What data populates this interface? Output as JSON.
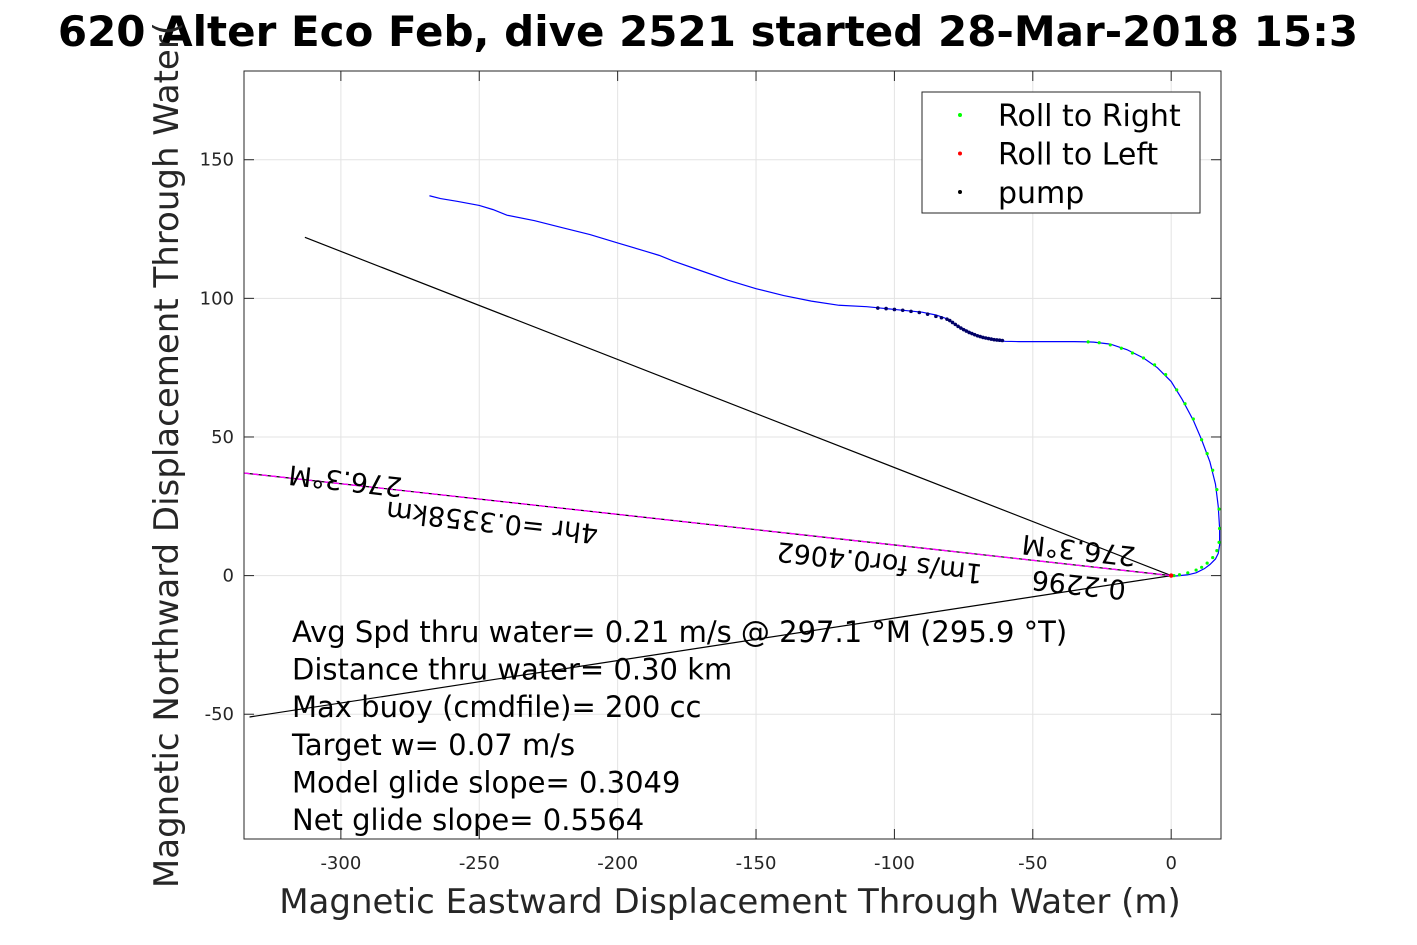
{
  "chart_data": {
    "type": "line",
    "title": "620 Alter Eco Feb, dive 2521 started 28-Mar-2018 15:3",
    "xlabel": "Magnetic Eastward Displacement Through Water (m)",
    "ylabel": "Magnetic Northward Displacement Through Water(",
    "xlim": [
      -335,
      18
    ],
    "ylim": [
      -95,
      182
    ],
    "xticks": [
      -300,
      -250,
      -200,
      -150,
      -100,
      -50,
      0
    ],
    "yticks": [
      -50,
      0,
      50,
      100,
      150
    ],
    "grid": true,
    "legend_position": "top-right",
    "legend": [
      {
        "label": "Roll to Right",
        "color": "#00ff00"
      },
      {
        "label": "Roll to Left",
        "color": "#ff0000"
      },
      {
        "label": "pump",
        "color": "#000000"
      }
    ],
    "track": {
      "color": "#0000ff",
      "x": [
        -268,
        -264,
        -258,
        -250,
        -245,
        -240,
        -230,
        -220,
        -210,
        -200,
        -190,
        -185,
        -180,
        -170,
        -160,
        -150,
        -140,
        -130,
        -120,
        -110,
        -105,
        -100,
        -95,
        -90,
        -85,
        -82,
        -80,
        -78,
        -76,
        -74,
        -72,
        -70,
        -68,
        -66,
        -64,
        -62,
        -60,
        -55,
        -50,
        -45,
        -40,
        -35,
        -30,
        -28,
        -22,
        -16,
        -10,
        -5,
        0,
        4,
        8,
        11,
        14,
        16,
        17,
        17.5,
        17.5,
        17,
        16,
        14,
        12,
        9,
        6,
        3,
        1,
        0
      ],
      "y": [
        137,
        136,
        135,
        133.5,
        132,
        130,
        128,
        125.5,
        123,
        120,
        117,
        115.5,
        113.5,
        110,
        106.5,
        103.5,
        101,
        99,
        97.5,
        97,
        96.5,
        96,
        95.5,
        95,
        94,
        93,
        92,
        90.5,
        89.5,
        88.5,
        87.5,
        86.5,
        86,
        85.5,
        85,
        84.8,
        84.5,
        84.4,
        84.4,
        84.4,
        84.4,
        84.4,
        84.3,
        84.2,
        83.5,
        81.5,
        78.5,
        75,
        70,
        63.5,
        56,
        49,
        41,
        33,
        25,
        17,
        11,
        8,
        6,
        4,
        2.5,
        1,
        0.3,
        0,
        -0.2,
        0
      ]
    },
    "pump_points": {
      "color": "#000066",
      "x": [
        -106,
        -103,
        -100,
        -97,
        -94,
        -91,
        -88,
        -85,
        -83,
        -81,
        -80,
        -79,
        -78,
        -77,
        -76,
        -75,
        -74,
        -73,
        -72,
        -71,
        -70,
        -69,
        -68,
        -67,
        -66,
        -65,
        -64,
        -63,
        -62,
        -61
      ],
      "y": [
        96.5,
        96.3,
        96,
        95.7,
        95.3,
        94.9,
        94.3,
        93.5,
        93,
        92.5,
        92,
        91.3,
        90.6,
        89.9,
        89.3,
        88.7,
        88.2,
        87.7,
        87.3,
        86.9,
        86.5,
        86.2,
        85.9,
        85.7,
        85.5,
        85.3,
        85.1,
        85,
        84.9,
        84.8
      ]
    },
    "roll_right_points": {
      "color": "#00ff00",
      "x": [
        -30,
        -26,
        -22,
        -18,
        -14,
        -10,
        -6,
        -2,
        2,
        5,
        8,
        11,
        13,
        15,
        16.5,
        17.3,
        17.5,
        17.3,
        16.5,
        15,
        13,
        11,
        9,
        6,
        3,
        1
      ],
      "y": [
        84.3,
        84,
        83.2,
        82,
        80.3,
        78.5,
        76,
        72.5,
        67,
        62,
        56.5,
        49,
        44,
        38,
        31,
        24,
        17,
        12,
        9,
        6.5,
        4.5,
        3,
        2,
        1,
        0.3,
        0
      ]
    },
    "roll_left_points": {
      "color": "#ff0000",
      "x": [
        0
      ],
      "y": [
        0
      ]
    },
    "lines": [
      {
        "color": "#000000",
        "x": [
          0,
          -313
        ],
        "y": [
          0,
          122
        ]
      },
      {
        "color": "#000000",
        "x": [
          0,
          -333
        ],
        "y": [
          0,
          -51
        ]
      },
      {
        "color": "#000000",
        "x": [
          0,
          -335
        ],
        "y": [
          0,
          37
        ]
      },
      {
        "color": "#ff00ff",
        "x": [
          0,
          -335
        ],
        "y": [
          0,
          37
        ],
        "dashed": true
      }
    ],
    "rotated_labels": [
      {
        "text": "276.3°M",
        "x": -298,
        "y": 37.5,
        "angle": 186.3
      },
      {
        "text": "276.3°M",
        "x": -33,
        "y": 12.5,
        "angle": 186.3
      },
      {
        "text": "0.2296",
        "x": -33,
        "y": 0,
        "angle": 186.3
      },
      {
        "text": "1m/s for0.4062",
        "x": -105,
        "y": 8,
        "angle": 186.3
      },
      {
        "text": "4hr =0.3358km",
        "x": -245,
        "y": 22.5,
        "angle": 186.3
      }
    ],
    "stats": [
      "Avg Spd thru water=  0.21 m/s @ 297.1 °M (295.9 °T)",
      "Distance thru water=  0.30 km",
      "Max buoy (cmdfile)= 200 cc",
      "Target w= 0.07 m/s",
      "Model glide slope= 0.3049",
      "Net glide slope= 0.5564"
    ]
  }
}
